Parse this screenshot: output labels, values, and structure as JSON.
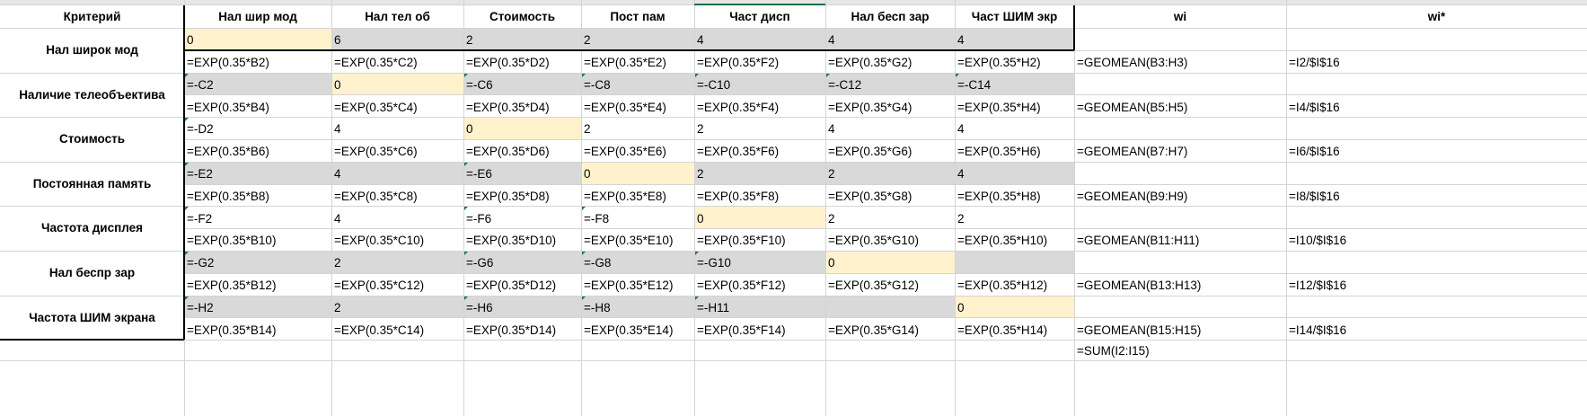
{
  "headers": {
    "criteria": "Критерий",
    "cols": [
      "Нал шир мод",
      "Нал тел об",
      "Стоимость",
      "Пост пам",
      "Част дисп",
      "Нал бесп зар",
      "Част ШИМ экр"
    ],
    "wi": "wi",
    "wi_star": "wi*"
  },
  "row_labels": [
    "Нал широк мод",
    "Наличие телеобъектива",
    "Стоимость",
    "Постоянная память",
    "Частота дисплея",
    "Нал беспр зар",
    "Частота ШИМ экрана"
  ],
  "value_rows": [
    [
      "0",
      "6",
      "2",
      "2",
      "4",
      "4",
      "4"
    ],
    [
      "=-C2",
      "0",
      "=-C6",
      "=-C8",
      "=-C10",
      "=-C12",
      "=-C14"
    ],
    [
      "=-D2",
      "4",
      "0",
      "2",
      "2",
      "4",
      "4"
    ],
    [
      "=-E2",
      "4",
      "=-E6",
      "0",
      "2",
      "2",
      "4"
    ],
    [
      "=-F2",
      "4",
      "=-F6",
      "=-F8",
      "0",
      "2",
      "2"
    ],
    [
      "=-G2",
      "2",
      "=-G6",
      "=-G8",
      "=-G10",
      "0",
      ""
    ],
    [
      "=-H2",
      "2",
      "=-H6",
      "=-H8",
      "=-H11",
      "",
      "0"
    ]
  ],
  "formula_rows": [
    [
      "=EXP(0.35*B2)",
      "=EXP(0.35*C2)",
      "=EXP(0.35*D2)",
      "=EXP(0.35*E2)",
      "=EXP(0.35*F2)",
      "=EXP(0.35*G2)",
      "=EXP(0.35*H2)"
    ],
    [
      "=EXP(0.35*B4)",
      "=EXP(0.35*C4)",
      "=EXP(0.35*D4)",
      "=EXP(0.35*E4)",
      "=EXP(0.35*F4)",
      "=EXP(0.35*G4)",
      "=EXP(0.35*H4)"
    ],
    [
      "=EXP(0.35*B6)",
      "=EXP(0.35*C6)",
      "=EXP(0.35*D6)",
      "=EXP(0.35*E6)",
      "=EXP(0.35*F6)",
      "=EXP(0.35*G6)",
      "=EXP(0.35*H6)"
    ],
    [
      "=EXP(0.35*B8)",
      "=EXP(0.35*C8)",
      "=EXP(0.35*D8)",
      "=EXP(0.35*E8)",
      "=EXP(0.35*F8)",
      "=EXP(0.35*G8)",
      "=EXP(0.35*H8)"
    ],
    [
      "=EXP(0.35*B10)",
      "=EXP(0.35*C10)",
      "=EXP(0.35*D10)",
      "=EXP(0.35*E10)",
      "=EXP(0.35*F10)",
      "=EXP(0.35*G10)",
      "=EXP(0.35*H10)"
    ],
    [
      "=EXP(0.35*B12)",
      "=EXP(0.35*C12)",
      "=EXP(0.35*D12)",
      "=EXP(0.35*E12)",
      "=EXP(0.35*F12)",
      "=EXP(0.35*G12)",
      "=EXP(0.35*H12)"
    ],
    [
      "=EXP(0.35*B14)",
      "=EXP(0.35*C14)",
      "=EXP(0.35*D14)",
      "=EXP(0.35*E14)",
      "=EXP(0.35*F14)",
      "=EXP(0.35*G14)",
      "=EXP(0.35*H14)"
    ]
  ],
  "wi_formulas": [
    "=GEOMEAN(B3:H3)",
    "=GEOMEAN(B5:H5)",
    "=GEOMEAN(B7:H7)",
    "=GEOMEAN(B9:H9)",
    "=GEOMEAN(B11:H11)",
    "=GEOMEAN(B13:H13)",
    "=GEOMEAN(B15:H15)"
  ],
  "wi_star_formulas": [
    "=I2/$I$16",
    "=I4/$I$16",
    "=I6/$I$16",
    "=I8/$I$16",
    "=I10/$I$16",
    "=I12/$I$16",
    "=I14/$I$16"
  ],
  "sum_formula": "=SUM(I2:I15)",
  "colors": {
    "gray_fill": "#d9d9d9",
    "diagonal_fill": "#fff2cc",
    "gridline": "#d4d4d4",
    "error_indicator": "#1f7a3a"
  }
}
